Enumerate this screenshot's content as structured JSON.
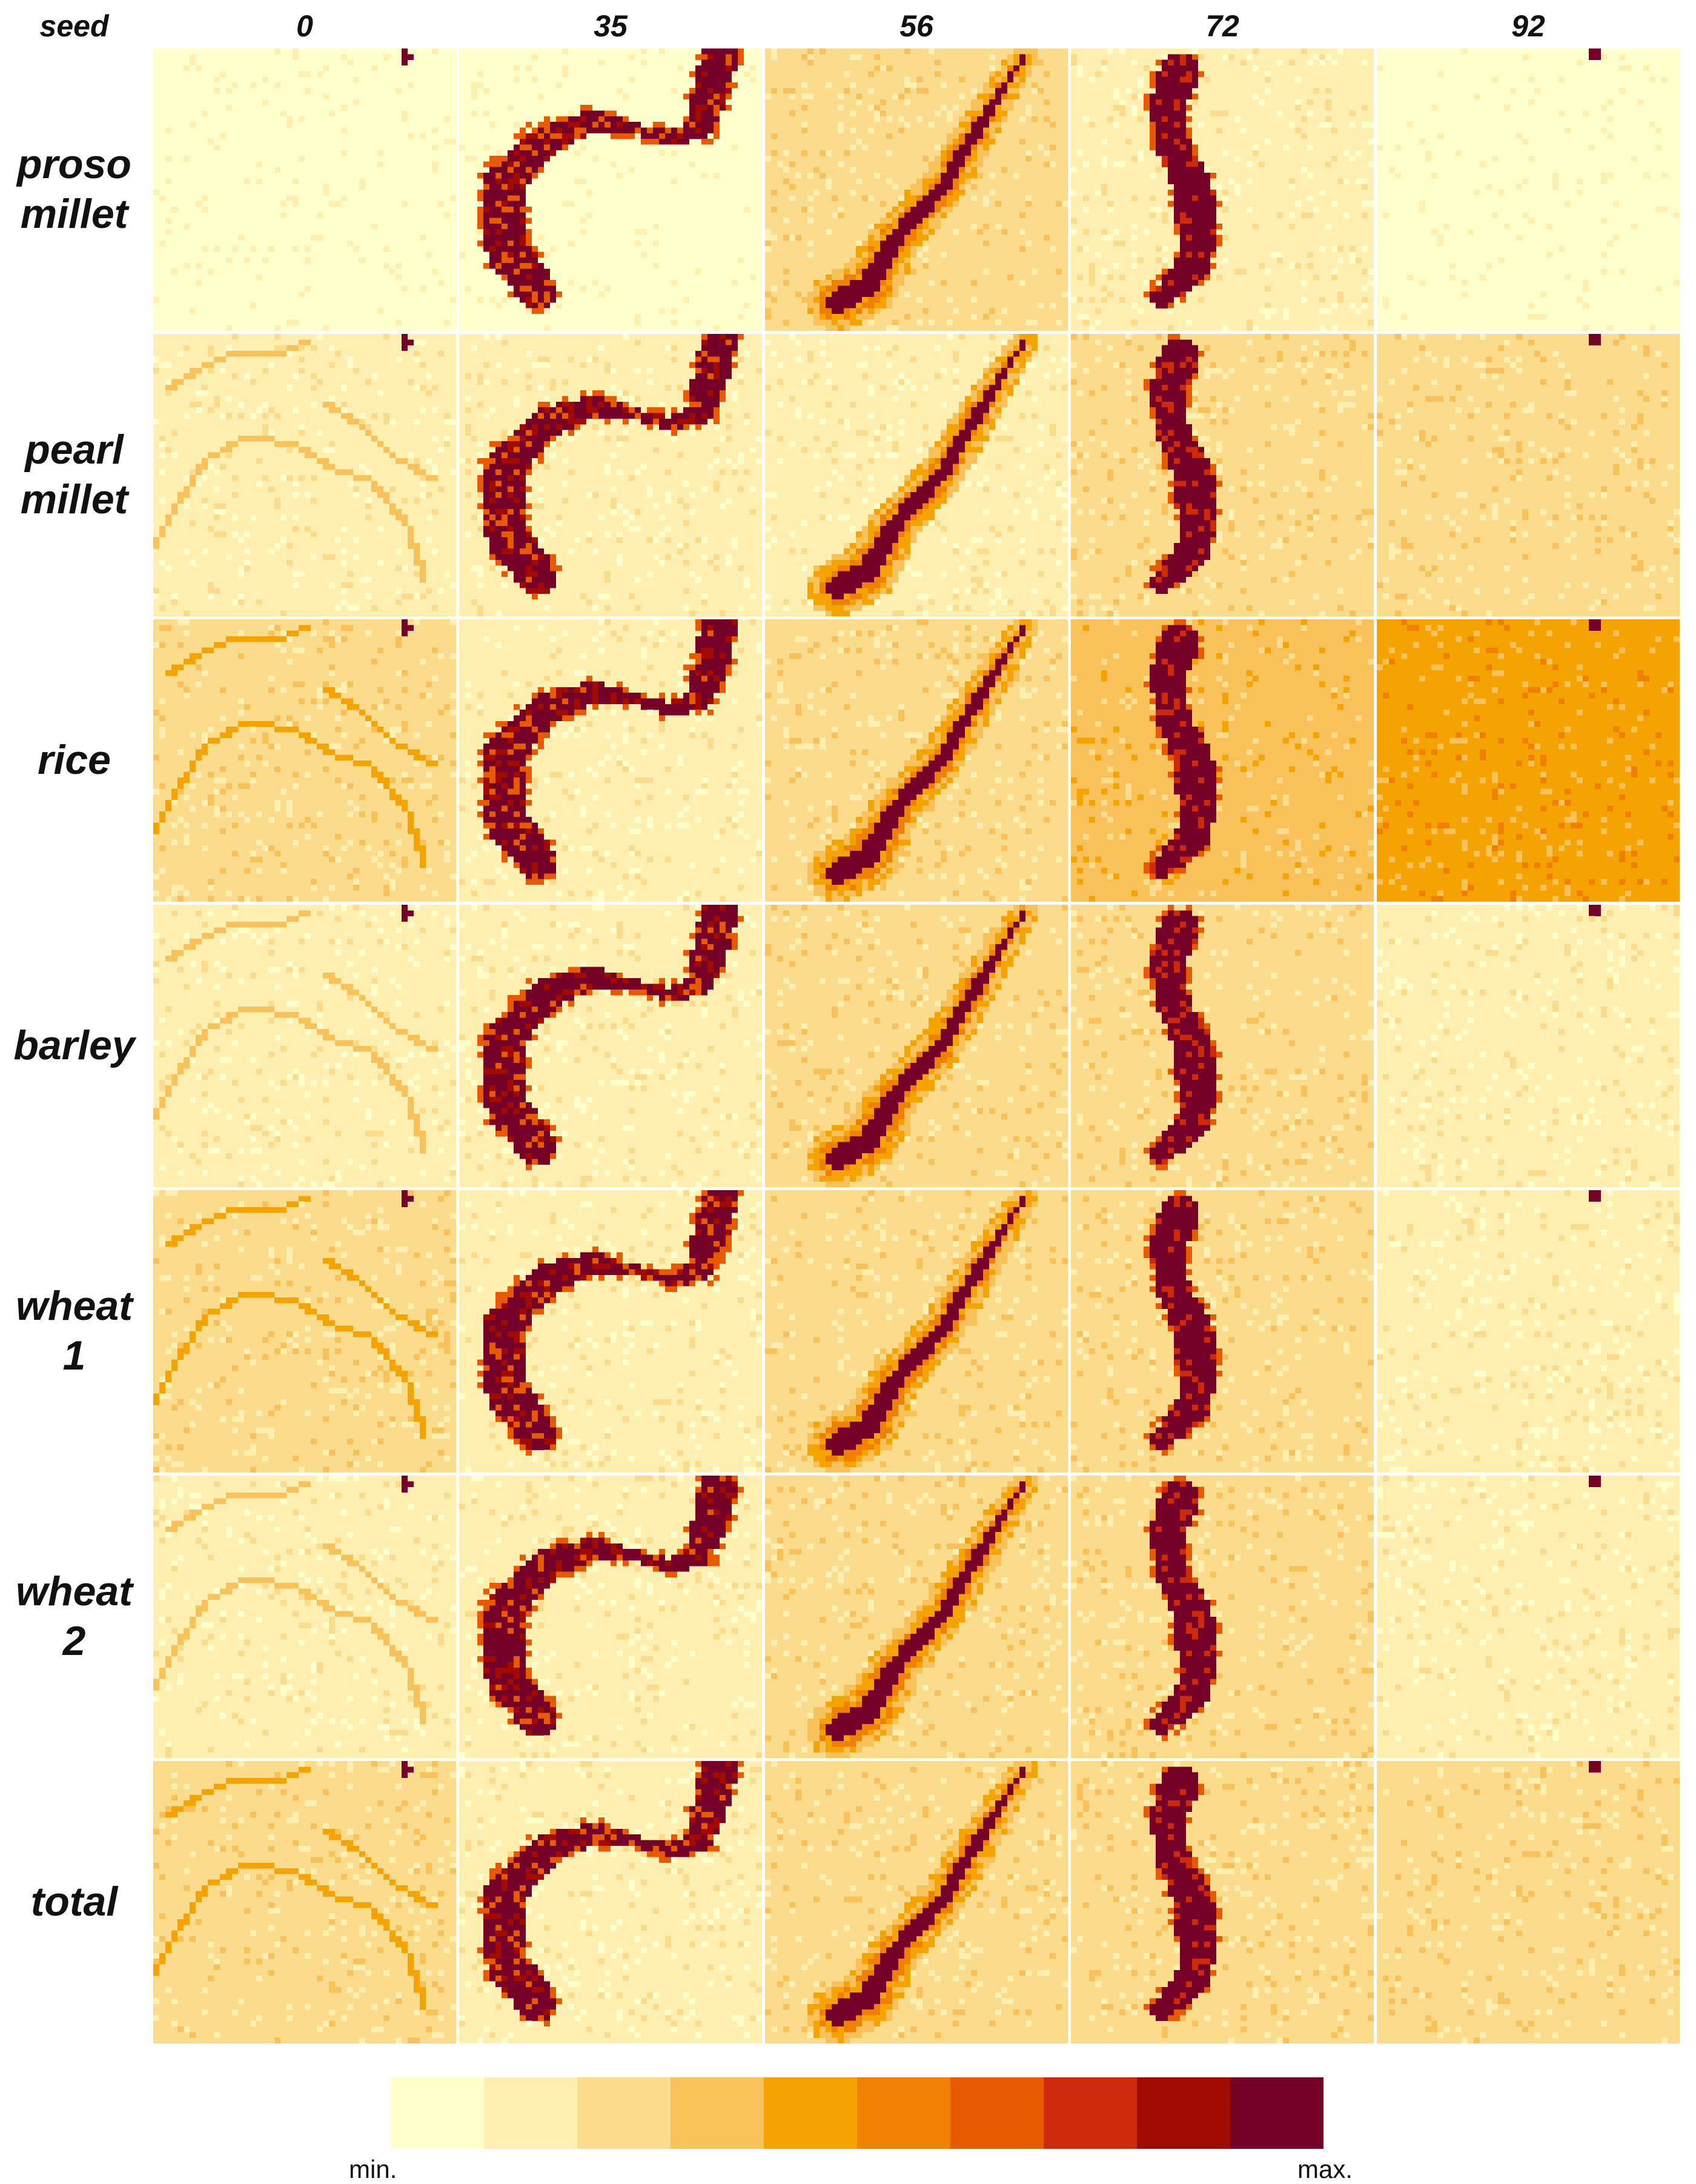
{
  "header": {
    "corner_label": "seed"
  },
  "chart_data": {
    "type": "heatmap",
    "title": "",
    "columns_label": "seed",
    "columns": [
      "0",
      "35",
      "56",
      "72",
      "92"
    ],
    "rows": [
      "proso\nmillet",
      "pearl\nmillet",
      "rice",
      "barley",
      "wheat\n1",
      "wheat\n2",
      "total"
    ],
    "grid_cells": 50,
    "background_level": [
      [
        0,
        0,
        2,
        1,
        0
      ],
      [
        1,
        1,
        1,
        2,
        2
      ],
      [
        2,
        1,
        2,
        3,
        4
      ],
      [
        1,
        1,
        2,
        2,
        1
      ],
      [
        2,
        1,
        2,
        2,
        1
      ],
      [
        1,
        1,
        2,
        2,
        1
      ],
      [
        2,
        1,
        2,
        2,
        2
      ]
    ],
    "colorbar": {
      "levels": 10,
      "min_label": "min.",
      "max_label": "max.",
      "colors": [
        "#ffffcc",
        "#fff0b2",
        "#fbdc8c",
        "#f8c15a",
        "#f4a300",
        "#f08000",
        "#e85a00",
        "#cc2a0a",
        "#a00a00",
        "#750028"
      ]
    }
  }
}
